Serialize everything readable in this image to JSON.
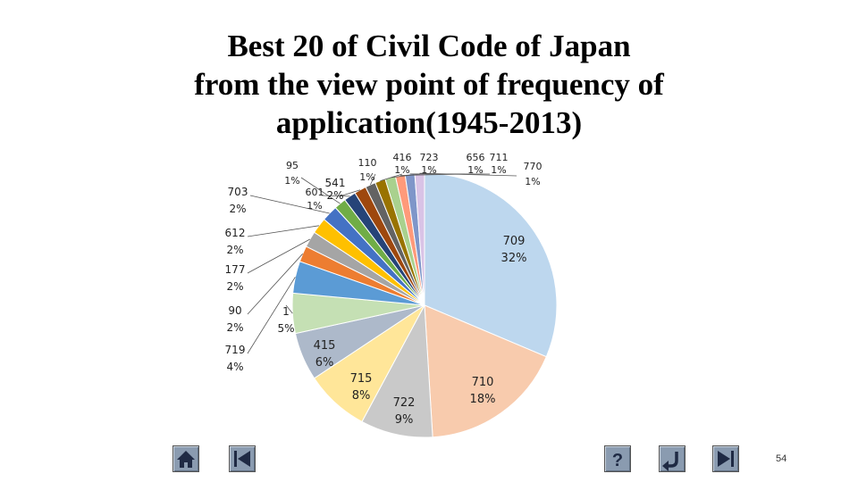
{
  "chart_data": {
    "type": "pie",
    "title_lines": [
      "Best 20 of Civil Code of Japan",
      "from the view point of frequency of",
      "application(1945-2013)"
    ],
    "slices": [
      {
        "label": "709",
        "percent": "32%",
        "value": 32,
        "color": "#bdd7ee"
      },
      {
        "label": "710",
        "percent": "18%",
        "value": 18,
        "color": "#f8cbad"
      },
      {
        "label": "722",
        "percent": "9%",
        "value": 9,
        "color": "#c9c9c9"
      },
      {
        "label": "715",
        "percent": "8%",
        "value": 8,
        "color": "#ffe699"
      },
      {
        "label": "415",
        "percent": "6%",
        "value": 6,
        "color": "#adb9ca"
      },
      {
        "label": "1",
        "percent": "5%",
        "value": 5,
        "color": "#c5e0b4"
      },
      {
        "label": "719",
        "percent": "4%",
        "value": 4,
        "color": "#5b9bd5"
      },
      {
        "label": "90",
        "percent": "2%",
        "value": 2,
        "color": "#ed7d31"
      },
      {
        "label": "177",
        "percent": "2%",
        "value": 2,
        "color": "#a5a5a5"
      },
      {
        "label": "612",
        "percent": "2%",
        "value": 2,
        "color": "#ffc000"
      },
      {
        "label": "703",
        "percent": "2%",
        "value": 2,
        "color": "#4472c4"
      },
      {
        "label": "95",
        "percent": "1%",
        "value": 1.5,
        "color": "#70ad47"
      },
      {
        "label": "601",
        "percent": "1%",
        "value": 1.5,
        "color": "#264478"
      },
      {
        "label": "541",
        "percent": "2%",
        "value": 1.5,
        "color": "#9e480e"
      },
      {
        "label": "110",
        "percent": "1%",
        "value": 1.3,
        "color": "#636363"
      },
      {
        "label": "416",
        "percent": "1%",
        "value": 1.3,
        "color": "#997300"
      },
      {
        "label": "723",
        "percent": "1%",
        "value": 1.3,
        "color": "#a9d18e"
      },
      {
        "label": "656",
        "percent": "1%",
        "value": 1.2,
        "color": "#ff9a7a"
      },
      {
        "label": "711",
        "percent": "1%",
        "value": 1.2,
        "color": "#7f96c9"
      },
      {
        "label": "770",
        "percent": "1%",
        "value": 1.2,
        "color": "#d9c3e6"
      }
    ]
  },
  "nav": {
    "home_icon": "home-icon",
    "first_icon": "first-slide-icon",
    "help_icon": "question-mark-icon",
    "return_icon": "return-arrow-icon",
    "last_icon": "last-slide-icon",
    "help_glyph": "?",
    "colors": {
      "button": "#8a9bb0",
      "glyph": "#1f2a44"
    }
  },
  "page_number": "54"
}
